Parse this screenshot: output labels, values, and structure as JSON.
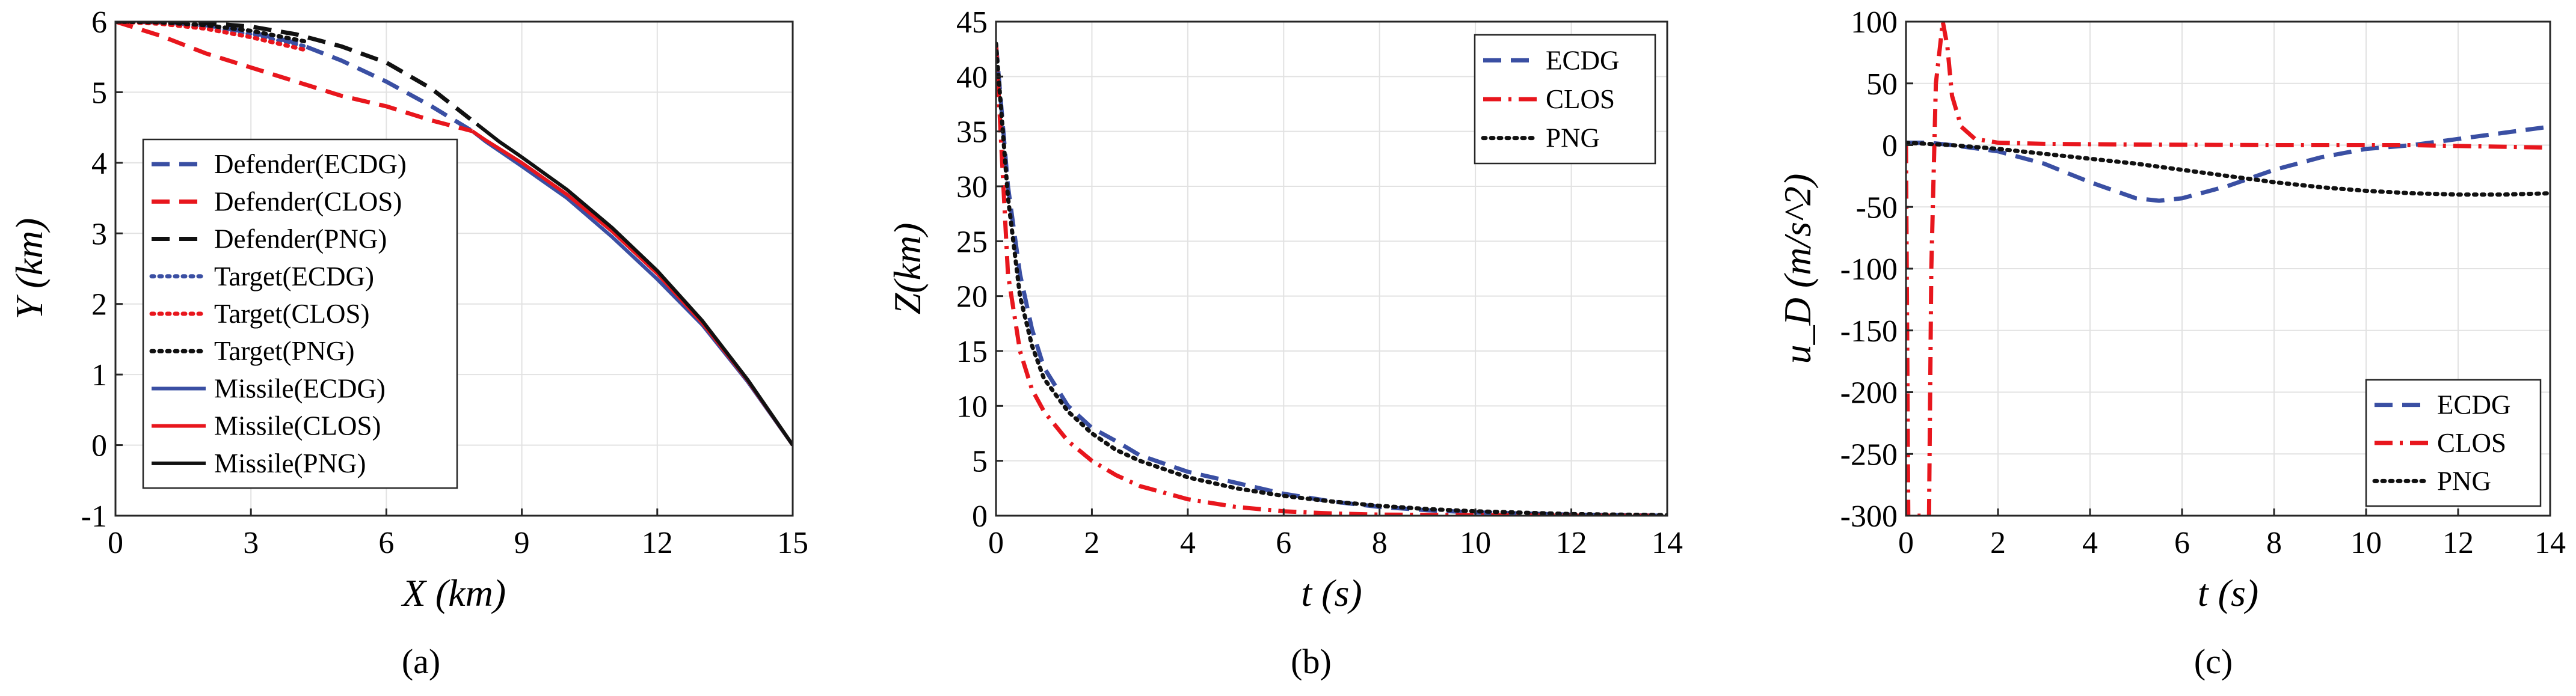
{
  "figure": {
    "colors": {
      "blue": "#3a4fa3",
      "red": "#e8161d",
      "black": "#111111"
    },
    "panels": [
      {
        "id": "a",
        "caption": "(a)",
        "chart_data": {
          "type": "line",
          "title": "",
          "xlabel": "X (km)",
          "ylabel": "Y (km)",
          "xlim": [
            0,
            15
          ],
          "ylim": [
            -1,
            6
          ],
          "xticks": [
            0,
            3,
            6,
            9,
            12,
            15
          ],
          "xtick_labels": [
            "0",
            "3",
            "6",
            "9",
            "12",
            "15"
          ],
          "yticks": [
            -1,
            0,
            1,
            2,
            3,
            4,
            5,
            6
          ],
          "ytick_labels": [
            "-1",
            "0",
            "1",
            "2",
            "3",
            "4",
            "5",
            "6"
          ],
          "grid": true,
          "legend_position": "lower-left",
          "series": [
            {
              "name": "Defender(ECDG)",
              "color": "blue",
              "style": "dashed",
              "x": [
                0,
                1,
                2,
                3,
                4,
                5,
                6,
                7,
                7.9
              ],
              "y": [
                6,
                5.99,
                5.95,
                5.85,
                5.7,
                5.45,
                5.15,
                4.8,
                4.45
              ]
            },
            {
              "name": "Defender(CLOS)",
              "color": "red",
              "style": "dashed",
              "x": [
                0,
                1,
                2,
                3,
                4,
                5,
                6,
                7,
                7.9
              ],
              "y": [
                6,
                5.8,
                5.55,
                5.35,
                5.15,
                4.95,
                4.8,
                4.6,
                4.45
              ]
            },
            {
              "name": "Defender(PNG)",
              "color": "black",
              "style": "dashed",
              "x": [
                0,
                1,
                2,
                3,
                4,
                5,
                6,
                7,
                8.0
              ],
              "y": [
                6,
                6,
                5.98,
                5.93,
                5.82,
                5.65,
                5.42,
                5.05,
                4.55
              ]
            },
            {
              "name": "Target(ECDG)",
              "color": "blue",
              "style": "dotted",
              "x": [
                0,
                1,
                2,
                3,
                4.2
              ],
              "y": [
                6,
                5.98,
                5.92,
                5.82,
                5.65
              ]
            },
            {
              "name": "Target(CLOS)",
              "color": "red",
              "style": "dotted",
              "x": [
                0,
                1,
                2,
                3,
                4.2
              ],
              "y": [
                6,
                5.97,
                5.9,
                5.78,
                5.6
              ]
            },
            {
              "name": "Target(PNG)",
              "color": "black",
              "style": "dotted",
              "x": [
                0,
                1,
                2,
                3,
                4.2
              ],
              "y": [
                6,
                5.99,
                5.95,
                5.87,
                5.72
              ]
            },
            {
              "name": "Missile(ECDG)",
              "color": "blue",
              "style": "solid",
              "x": [
                15,
                14,
                13,
                12,
                11,
                10,
                9,
                8.2,
                7.9
              ],
              "y": [
                0,
                0.9,
                1.7,
                2.35,
                2.95,
                3.5,
                3.95,
                4.3,
                4.45
              ]
            },
            {
              "name": "Missile(CLOS)",
              "color": "red",
              "style": "solid",
              "x": [
                15,
                14,
                13,
                12,
                11,
                10,
                9,
                8.2,
                7.9
              ],
              "y": [
                0,
                0.92,
                1.73,
                2.43,
                3.03,
                3.55,
                4.0,
                4.32,
                4.45
              ]
            },
            {
              "name": "Missile(PNG)",
              "color": "black",
              "style": "solid",
              "x": [
                15,
                14,
                13,
                12,
                11,
                10,
                9,
                8.5,
                8.0
              ],
              "y": [
                0,
                0.93,
                1.76,
                2.47,
                3.08,
                3.62,
                4.08,
                4.3,
                4.55
              ]
            }
          ]
        }
      },
      {
        "id": "b",
        "caption": "(b)",
        "chart_data": {
          "type": "line",
          "title": "",
          "xlabel": "t (s)",
          "ylabel": "Z(km)",
          "xlim": [
            0,
            14
          ],
          "ylim": [
            0,
            45
          ],
          "xticks": [
            0,
            2,
            4,
            6,
            8,
            10,
            12,
            14
          ],
          "xtick_labels": [
            "0",
            "2",
            "4",
            "6",
            "8",
            "10",
            "12",
            "14"
          ],
          "yticks": [
            0,
            5,
            10,
            15,
            20,
            25,
            30,
            35,
            40,
            45
          ],
          "ytick_labels": [
            "0",
            "5",
            "10",
            "15",
            "20",
            "25",
            "30",
            "35",
            "40",
            "45"
          ],
          "grid": true,
          "legend_position": "top-right",
          "series": [
            {
              "name": "ECDG",
              "color": "blue",
              "style": "dashed",
              "x": [
                0,
                0.25,
                0.5,
                0.75,
                1,
                1.5,
                2,
                2.5,
                3,
                4,
                5,
                6,
                7,
                8,
                9,
                10,
                12,
                14
              ],
              "y": [
                43,
                30,
                22,
                17,
                13.5,
                10,
                8,
                6.8,
                5.5,
                4,
                3,
                2,
                1.3,
                0.8,
                0.5,
                0.3,
                0.1,
                0
              ]
            },
            {
              "name": "CLOS",
              "color": "red",
              "style": "dashdot",
              "x": [
                0,
                0.25,
                0.5,
                0.75,
                1,
                1.5,
                2,
                2.5,
                3,
                4,
                5,
                6,
                7,
                8,
                10,
                12,
                14
              ],
              "y": [
                43,
                22,
                15,
                11.5,
                9.5,
                6.8,
                5,
                3.7,
                2.7,
                1.5,
                0.8,
                0.4,
                0.2,
                0.1,
                0.05,
                0,
                0
              ]
            },
            {
              "name": "PNG",
              "color": "black",
              "style": "dotted",
              "x": [
                0,
                0.25,
                0.5,
                0.75,
                1,
                1.5,
                2,
                2.5,
                3,
                4,
                5,
                6,
                7,
                8,
                9,
                10,
                12,
                14
              ],
              "y": [
                43,
                29,
                20,
                15.5,
                12.5,
                9.5,
                7.5,
                6,
                5,
                3.5,
                2.5,
                1.8,
                1.3,
                0.9,
                0.6,
                0.4,
                0.15,
                0.05
              ]
            }
          ]
        }
      },
      {
        "id": "c",
        "caption": "(c)",
        "chart_data": {
          "type": "line",
          "title": "",
          "xlabel": "t (s)",
          "ylabel": "u_D (m/s^2)",
          "xlim": [
            0,
            14
          ],
          "ylim": [
            -300,
            100
          ],
          "xticks": [
            0,
            2,
            4,
            6,
            8,
            10,
            12,
            14
          ],
          "xtick_labels": [
            "0",
            "2",
            "4",
            "6",
            "8",
            "10",
            "12",
            "14"
          ],
          "yticks": [
            -300,
            -250,
            -200,
            -150,
            -100,
            -50,
            0,
            50,
            100
          ],
          "ytick_labels": [
            "-300",
            "-250",
            "-200",
            "-150",
            "-100",
            "-50",
            "0",
            "50",
            "100"
          ],
          "grid": true,
          "legend_position": "bottom-right",
          "series": [
            {
              "name": "ECDG",
              "color": "blue",
              "style": "dashed",
              "x": [
                0,
                0.5,
                1,
                2,
                3,
                4,
                5,
                5.5,
                6,
                7,
                8,
                9,
                10,
                11,
                12,
                13,
                14
              ],
              "y": [
                2,
                2,
                0,
                -5,
                -15,
                -30,
                -43,
                -45,
                -43,
                -33,
                -20,
                -10,
                -3,
                0,
                5,
                10,
                15
              ]
            },
            {
              "name": "CLOS",
              "color": "red",
              "style": "dashdot",
              "x": [
                0,
                0.05,
                0.1,
                0.5,
                0.55,
                0.65,
                0.8,
                0.9,
                1.0,
                1.2,
                1.5,
                2,
                3,
                5,
                8,
                11,
                14
              ],
              "y": [
                0,
                -300,
                -300,
                -300,
                -100,
                50,
                100,
                80,
                40,
                15,
                5,
                2,
                1,
                0.5,
                0,
                0,
                -2
              ]
            },
            {
              "name": "PNG",
              "color": "black",
              "style": "dotted",
              "x": [
                0,
                1,
                2,
                3,
                4,
                5,
                6,
                7,
                8,
                9,
                10,
                11,
                12,
                13,
                14
              ],
              "y": [
                2,
                0,
                -3,
                -7,
                -11,
                -15,
                -20,
                -25,
                -30,
                -34,
                -37,
                -39,
                -40,
                -40,
                -39
              ]
            }
          ]
        }
      }
    ]
  }
}
